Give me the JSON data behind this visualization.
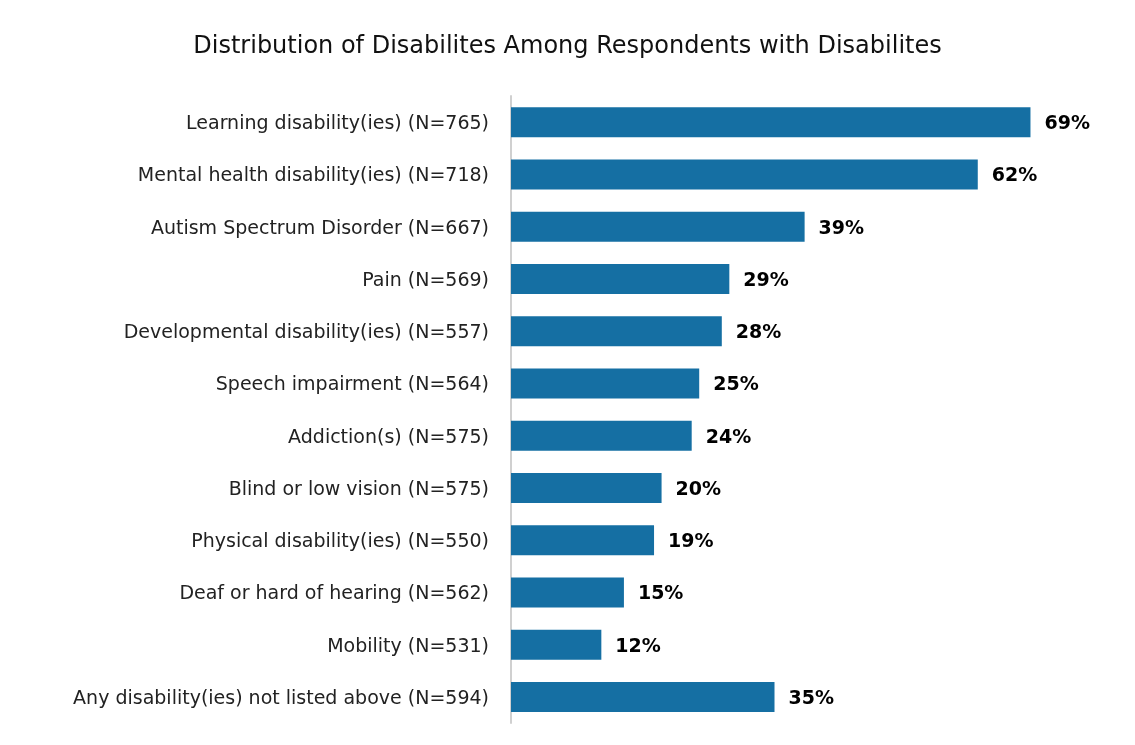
{
  "chart_data": {
    "type": "bar",
    "orientation": "horizontal",
    "title": "Distribution of Disabilites Among Respondents with Disabilites",
    "categories": [
      "Learning disability(ies) (N=765)",
      "Mental health disability(ies) (N=718)",
      "Autism Spectrum Disorder (N=667)",
      "Pain (N=569)",
      "Developmental disability(ies) (N=557)",
      "Speech impairment (N=564)",
      "Addiction(s) (N=575)",
      "Blind or low vision (N=575)",
      "Physical disability(ies) (N=550)",
      "Deaf or hard of hearing (N=562)",
      "Mobility (N=531)",
      "Any disability(ies) not listed above (N=594)"
    ],
    "values": [
      69,
      62,
      39,
      29,
      28,
      25,
      24,
      20,
      19,
      15,
      12,
      35
    ],
    "value_labels": [
      "69%",
      "62%",
      "39%",
      "29%",
      "28%",
      "25%",
      "24%",
      "20%",
      "19%",
      "15%",
      "12%",
      "35%"
    ],
    "color": "#156fa3",
    "tick_labels": "y"
  }
}
